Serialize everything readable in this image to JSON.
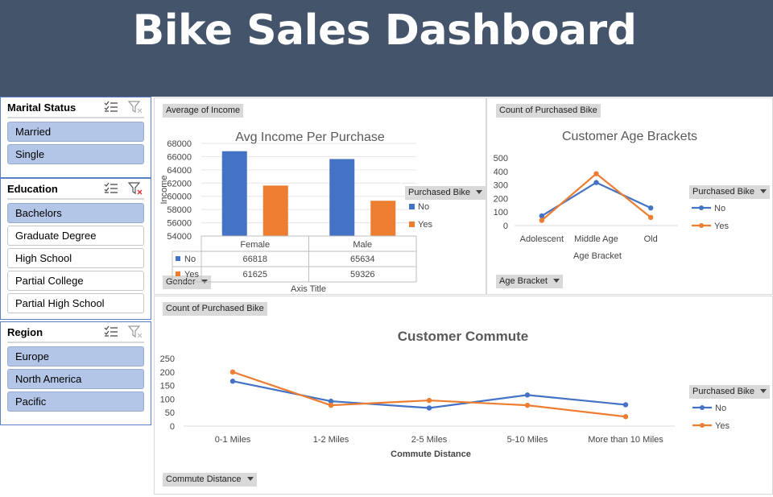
{
  "header": {
    "title": "Bike Sales Dashboard"
  },
  "slicers": {
    "marital": {
      "title": "Marital Status",
      "items": [
        {
          "label": "Married",
          "selected": true
        },
        {
          "label": "Single",
          "selected": true
        }
      ]
    },
    "education": {
      "title": "Education",
      "items": [
        {
          "label": "Bachelors",
          "selected": true
        },
        {
          "label": "Graduate Degree",
          "selected": false
        },
        {
          "label": "High School",
          "selected": false
        },
        {
          "label": "Partial College",
          "selected": false
        },
        {
          "label": "Partial High School",
          "selected": false
        }
      ]
    },
    "region": {
      "title": "Region",
      "items": [
        {
          "label": "Europe",
          "selected": true
        },
        {
          "label": "North America",
          "selected": true
        },
        {
          "label": "Pacific",
          "selected": true
        }
      ]
    }
  },
  "income_panel": {
    "value_field": "Average of Income",
    "axis_field": "Gender",
    "legend_field": "Purchased Bike",
    "axis_title": "Axis Title"
  },
  "age_panel": {
    "value_field": "Count of Purchased Bike",
    "axis_field": "Age Bracket",
    "legend_field": "Purchased Bike"
  },
  "commute_panel": {
    "value_field": "Count of Purchased Bike",
    "axis_field": "Commute Distance",
    "legend_field": "Purchased Bike"
  },
  "colors": {
    "header_bg": "#44546a",
    "series_no": "#4472c4",
    "series_yes": "#ed7d31",
    "slicer_selected": "#b4c6e7"
  },
  "chart_data": [
    {
      "type": "bar",
      "title": "Avg Income Per Purchase",
      "ylabel": "Income",
      "xlabel": "Axis Title",
      "categories": [
        "Female",
        "Male"
      ],
      "series": [
        {
          "name": "No",
          "values": [
            66818,
            65634
          ]
        },
        {
          "name": "Yes",
          "values": [
            61625,
            59326
          ]
        }
      ],
      "ylim": [
        54000,
        68000
      ],
      "yticks": [
        54000,
        56000,
        58000,
        60000,
        62000,
        64000,
        66000,
        68000
      ],
      "data_table": true,
      "legend": "right",
      "grid": true
    },
    {
      "type": "line",
      "title": "Customer Age Brackets",
      "xlabel": "Age Bracket",
      "categories": [
        "Adolescent",
        "Middle Age",
        "Old"
      ],
      "series": [
        {
          "name": "No",
          "values": [
            71,
            318,
            130
          ]
        },
        {
          "name": "Yes",
          "values": [
            38,
            383,
            60
          ]
        }
      ],
      "ylim": [
        0,
        500
      ],
      "yticks": [
        0,
        100,
        200,
        300,
        400,
        500
      ],
      "legend": "right",
      "grid": false
    },
    {
      "type": "line",
      "title": "Customer Commute",
      "xlabel": "Commute Distance",
      "categories": [
        "0-1 Miles",
        "1-2 Miles",
        "2-5 Miles",
        "5-10 Miles",
        "More than 10 Miles"
      ],
      "series": [
        {
          "name": "No",
          "values": [
            166,
            92,
            67,
            115,
            79
          ]
        },
        {
          "name": "Yes",
          "values": [
            200,
            77,
            95,
            77,
            35
          ]
        }
      ],
      "ylim": [
        0,
        250
      ],
      "yticks": [
        0,
        50,
        100,
        150,
        200,
        250
      ],
      "legend": "right",
      "grid": false
    }
  ]
}
